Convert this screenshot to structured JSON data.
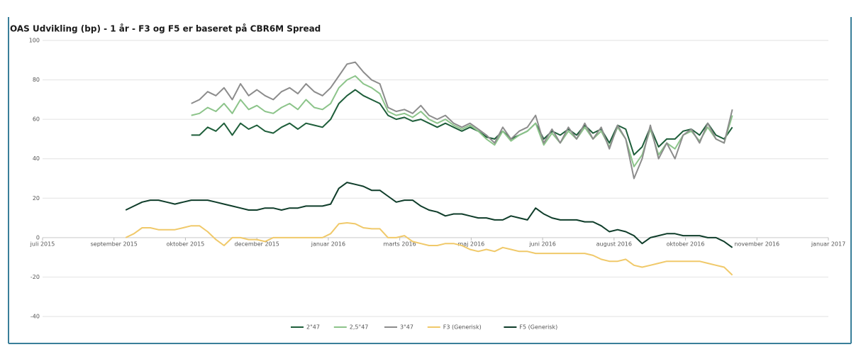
{
  "chart_data": {
    "type": "line",
    "title": "OAS Udvikling (bp) - 1 år - F3 og F5 er baseret på CBR6M Spread",
    "x": [
      71,
      78,
      85,
      92,
      99,
      106,
      113,
      120,
      127,
      134,
      141,
      148,
      155,
      162,
      169,
      176,
      183,
      190,
      197,
      204,
      211,
      218,
      225,
      232,
      239,
      246,
      253,
      260,
      267,
      274,
      281,
      288,
      295,
      302,
      309,
      316,
      323,
      330,
      337,
      344,
      351,
      358,
      365,
      372,
      379,
      386,
      393,
      400,
      407,
      414,
      421,
      428,
      435,
      442,
      449,
      456,
      463,
      470,
      477,
      484,
      491,
      498,
      505,
      512,
      519,
      526,
      533,
      540,
      547,
      554,
      561,
      568,
      575,
      582,
      589
    ],
    "xlim": [
      0,
      671
    ],
    "xticks": [
      {
        "value": 0,
        "label": "juli 2015"
      },
      {
        "value": 61,
        "label": "september 2015"
      },
      {
        "value": 122,
        "label": "oktober 2015"
      },
      {
        "value": 183,
        "label": "december 2015"
      },
      {
        "value": 244,
        "label": "januar 2016"
      },
      {
        "value": 305,
        "label": "marts 2016"
      },
      {
        "value": 366,
        "label": "maj 2016"
      },
      {
        "value": 427,
        "label": "juni 2016"
      },
      {
        "value": 488,
        "label": "august 2016"
      },
      {
        "value": 549,
        "label": "oktober 2016"
      },
      {
        "value": 610,
        "label": "november 2016"
      },
      {
        "value": 671,
        "label": "januar 2017"
      }
    ],
    "ylim": [
      -40,
      100
    ],
    "yticks": [
      100,
      80,
      60,
      40,
      20,
      0,
      -20,
      -40
    ],
    "grid": true,
    "legend": "bottom",
    "series": [
      {
        "name": "2\"47",
        "color": "#1e5e3a",
        "values": [
          null,
          null,
          null,
          null,
          null,
          null,
          null,
          null,
          52,
          52,
          56,
          54,
          58,
          52,
          58,
          55,
          57,
          54,
          53,
          56,
          58,
          55,
          58,
          57,
          56,
          60,
          68,
          72,
          75,
          72,
          70,
          68,
          62,
          60,
          61,
          59,
          60,
          58,
          56,
          58,
          56,
          54,
          56,
          54,
          51,
          50,
          54,
          50,
          52,
          54,
          58,
          50,
          54,
          52,
          55,
          52,
          57,
          53,
          55,
          48,
          57,
          55,
          42,
          46,
          56,
          46,
          50,
          50,
          54,
          55,
          52,
          58,
          52,
          50,
          56
        ]
      },
      {
        "name": "2,5\"47",
        "color": "#8cc48a",
        "values": [
          null,
          null,
          null,
          null,
          null,
          null,
          null,
          null,
          62,
          63,
          66,
          64,
          68,
          63,
          70,
          65,
          67,
          64,
          63,
          66,
          68,
          65,
          70,
          66,
          65,
          68,
          76,
          80,
          82,
          78,
          76,
          73,
          64,
          62,
          63,
          61,
          64,
          60,
          58,
          60,
          57,
          55,
          57,
          54,
          50,
          47,
          54,
          49,
          52,
          54,
          58,
          47,
          53,
          48,
          54,
          50,
          56,
          50,
          54,
          46,
          56,
          50,
          36,
          42,
          55,
          42,
          48,
          45,
          52,
          54,
          49,
          56,
          50,
          48,
          62
        ]
      },
      {
        "name": "3\"47",
        "color": "#8c8c8c",
        "values": [
          null,
          null,
          null,
          null,
          null,
          null,
          null,
          null,
          68,
          70,
          74,
          72,
          76,
          70,
          78,
          72,
          75,
          72,
          70,
          74,
          76,
          73,
          78,
          74,
          72,
          76,
          82,
          88,
          89,
          84,
          80,
          78,
          66,
          64,
          65,
          63,
          67,
          62,
          60,
          62,
          58,
          56,
          58,
          55,
          52,
          48,
          56,
          50,
          54,
          56,
          62,
          48,
          55,
          48,
          56,
          50,
          58,
          50,
          56,
          45,
          57,
          50,
          30,
          40,
          57,
          40,
          48,
          40,
          52,
          55,
          48,
          58,
          50,
          48,
          65
        ]
      },
      {
        "name": "F3 (Generisk)",
        "color": "#f0c96a",
        "values": [
          0,
          2,
          5,
          5,
          4,
          4,
          4,
          5,
          6,
          6,
          3,
          -1,
          -4,
          0,
          0,
          -1,
          -1,
          -2,
          0,
          0,
          0,
          0,
          0,
          0,
          0,
          2,
          7,
          7.5,
          7,
          5,
          4.5,
          4.5,
          0,
          0,
          1,
          -2,
          -3,
          -4,
          -4,
          -3,
          -3,
          -4,
          -6,
          -7,
          -6,
          -7,
          -5,
          -6,
          -7,
          -7,
          -8,
          -8,
          -8,
          -8,
          -8,
          -8,
          -8,
          -9,
          -11,
          -12,
          -12,
          -11,
          -14,
          -15,
          -14,
          -13,
          -12,
          -12,
          -12,
          -12,
          -12,
          -13,
          -14,
          -15,
          -19
        ]
      },
      {
        "name": "F5 (Generisk)",
        "color": "#0f3d2a",
        "values": [
          14,
          16,
          18,
          19,
          19,
          18,
          17,
          18,
          19,
          19,
          19,
          18,
          17,
          16,
          15,
          14,
          14,
          15,
          15,
          14,
          15,
          15,
          16,
          16,
          16,
          17,
          25,
          28,
          27,
          26,
          24,
          24,
          21,
          18,
          19,
          19,
          16,
          14,
          13,
          11,
          12,
          12,
          11,
          10,
          10,
          9,
          9,
          11,
          10,
          9,
          15,
          12,
          10,
          9,
          9,
          9,
          8,
          8,
          6,
          3,
          4,
          3,
          1,
          -3,
          0,
          1,
          2,
          2,
          1,
          1,
          1,
          0,
          0,
          -2,
          -5
        ]
      }
    ]
  }
}
